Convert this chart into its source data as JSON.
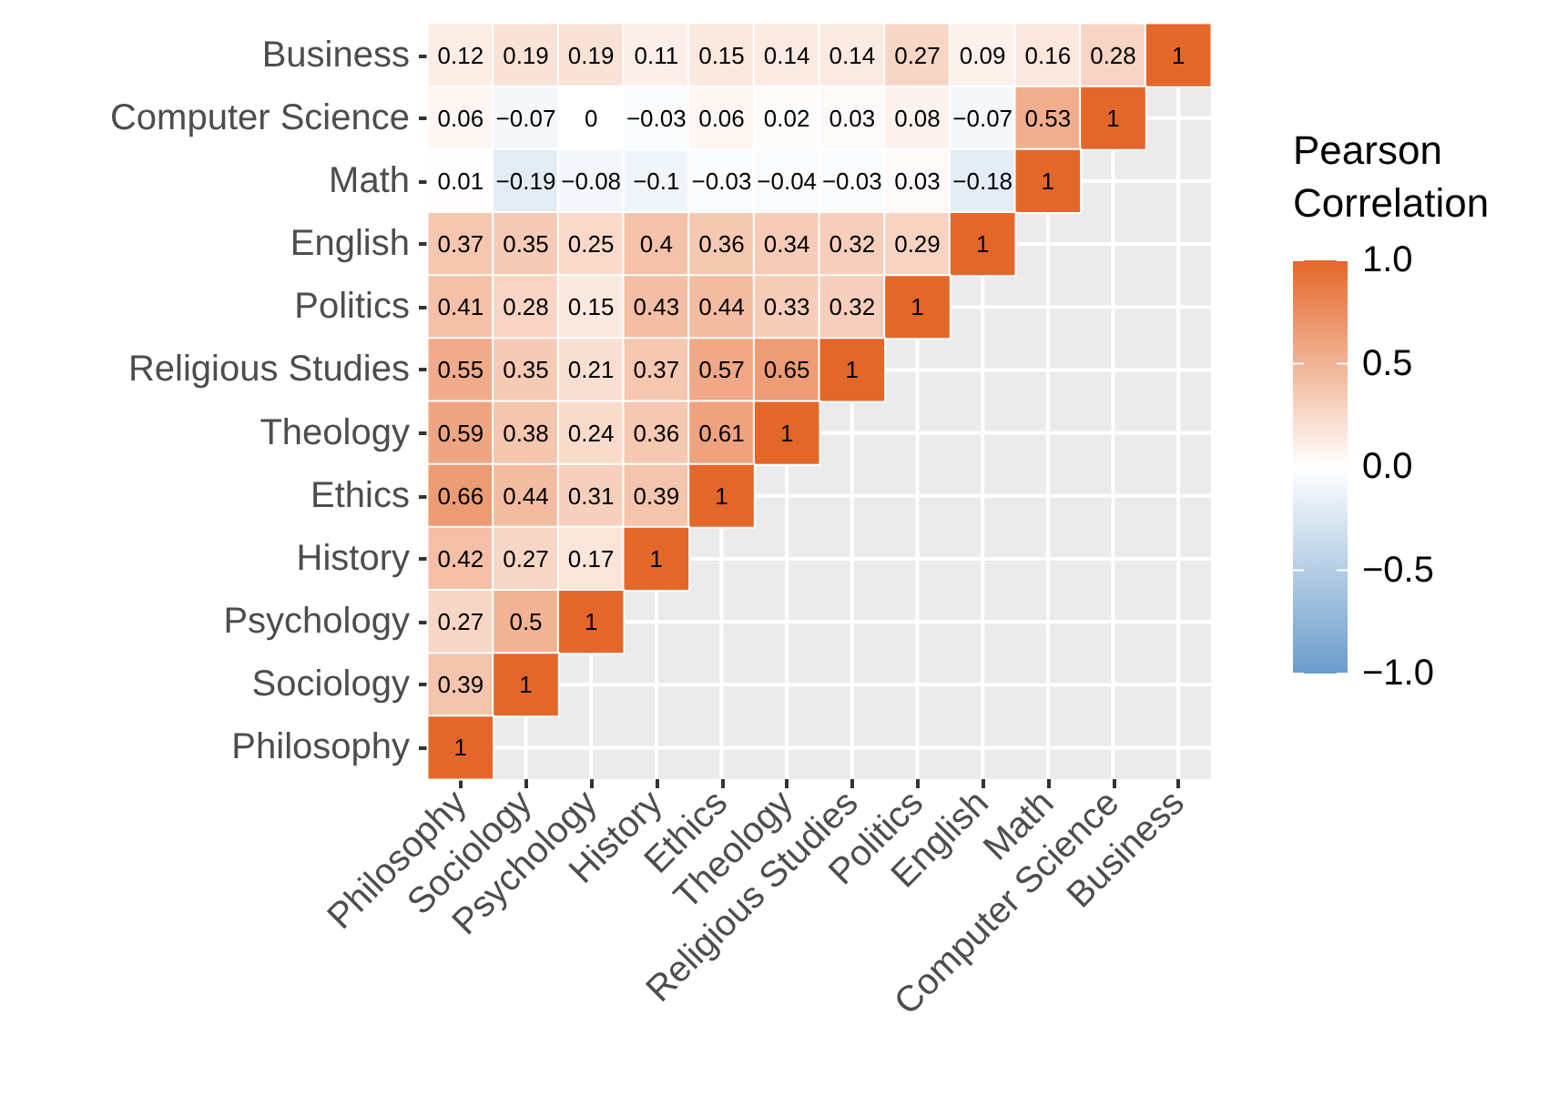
{
  "chart_data": {
    "type": "heatmap",
    "legend_title": "Pearson Correlation",
    "grid": true,
    "data_labels": true,
    "categories": [
      "Philosophy",
      "Sociology",
      "Psychology",
      "History",
      "Ethics",
      "Theology",
      "Religious Studies",
      "Politics",
      "English",
      "Math",
      "Computer Science",
      "Business"
    ],
    "y_categories": [
      "Business",
      "Computer Science",
      "Math",
      "English",
      "Politics",
      "Religious Studies",
      "Theology",
      "Ethics",
      "History",
      "Psychology",
      "Sociology",
      "Philosophy"
    ],
    "cells": [
      [
        0.12,
        0.19,
        0.19,
        0.11,
        0.15,
        0.14,
        0.14,
        0.27,
        0.09,
        0.16,
        0.28,
        1
      ],
      [
        0.06,
        -0.07,
        0,
        -0.03,
        0.06,
        0.02,
        0.03,
        0.08,
        -0.07,
        0.53,
        1,
        null
      ],
      [
        0.01,
        -0.19,
        -0.08,
        -0.1,
        -0.03,
        -0.04,
        -0.03,
        0.03,
        -0.18,
        1,
        null,
        null
      ],
      [
        0.37,
        0.35,
        0.25,
        0.4,
        0.36,
        0.34,
        0.32,
        0.29,
        1,
        null,
        null,
        null
      ],
      [
        0.41,
        0.28,
        0.15,
        0.43,
        0.44,
        0.33,
        0.32,
        1,
        null,
        null,
        null,
        null
      ],
      [
        0.55,
        0.35,
        0.21,
        0.37,
        0.57,
        0.65,
        1,
        null,
        null,
        null,
        null,
        null
      ],
      [
        0.59,
        0.38,
        0.24,
        0.36,
        0.61,
        1,
        null,
        null,
        null,
        null,
        null,
        null
      ],
      [
        0.66,
        0.44,
        0.31,
        0.39,
        1,
        null,
        null,
        null,
        null,
        null,
        null,
        null
      ],
      [
        0.42,
        0.27,
        0.17,
        1,
        null,
        null,
        null,
        null,
        null,
        null,
        null,
        null
      ],
      [
        0.27,
        0.5,
        1,
        null,
        null,
        null,
        null,
        null,
        null,
        null,
        null,
        null
      ],
      [
        0.39,
        1,
        null,
        null,
        null,
        null,
        null,
        null,
        null,
        null,
        null,
        null
      ],
      [
        1,
        null,
        null,
        null,
        null,
        null,
        null,
        null,
        null,
        null,
        null,
        null
      ]
    ],
    "clim": [
      -1,
      1
    ],
    "cticks": [
      {
        "value": -1,
        "label": "−1.0"
      },
      {
        "value": -0.5,
        "label": "−0.5"
      },
      {
        "value": 0,
        "label": "0.0"
      },
      {
        "value": 0.5,
        "label": "0.5"
      },
      {
        "value": 1,
        "label": "1.0"
      }
    ]
  }
}
